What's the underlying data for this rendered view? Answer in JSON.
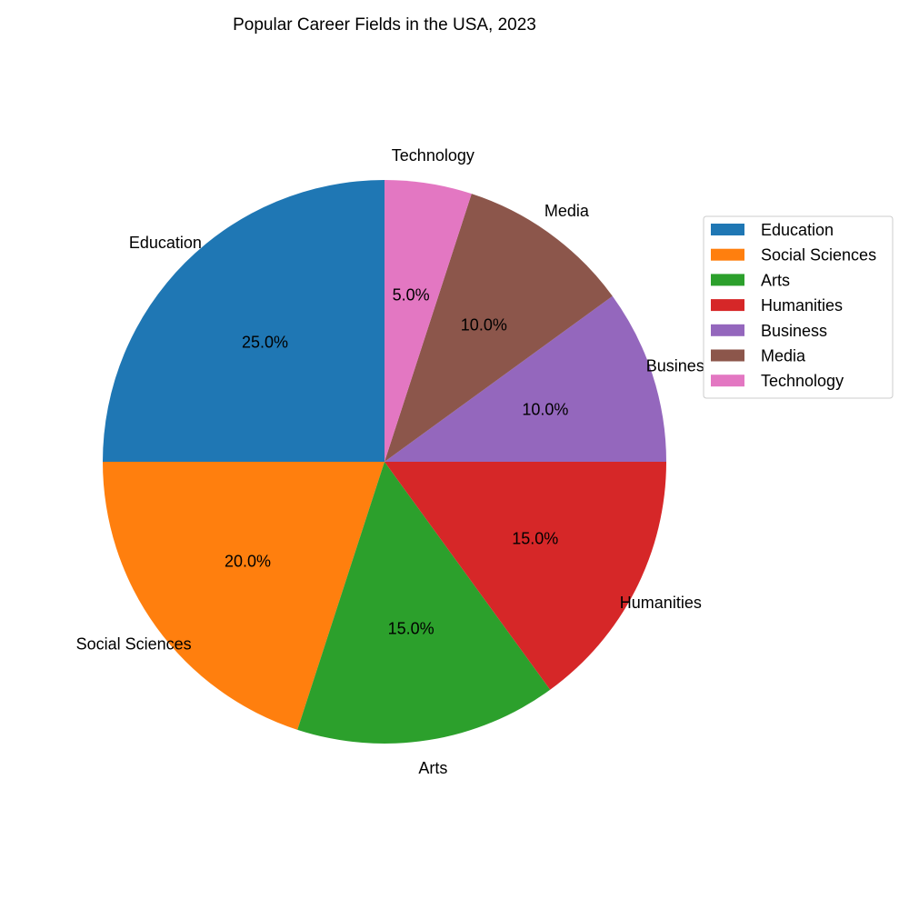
{
  "chart_data": {
    "type": "pie",
    "title": "Popular Career Fields in the USA, 2023",
    "start_angle": 90,
    "direction": "counterclockwise",
    "categories": [
      "Education",
      "Social Sciences",
      "Arts",
      "Humanities",
      "Business",
      "Media",
      "Technology"
    ],
    "values": [
      25,
      20,
      15,
      15,
      10,
      10,
      5
    ],
    "percent_labels": [
      "25.0%",
      "20.0%",
      "15.0%",
      "15.0%",
      "10.0%",
      "10.0%",
      "5.0%"
    ],
    "colors": [
      "#1f77b4",
      "#ff7f0e",
      "#2ca02c",
      "#d62728",
      "#9467bd",
      "#8c564b",
      "#e377c2"
    ],
    "legend": {
      "placement": "right",
      "entries": [
        "Education",
        "Social Sciences",
        "Arts",
        "Humanities",
        "Business",
        "Media",
        "Technology"
      ]
    }
  }
}
